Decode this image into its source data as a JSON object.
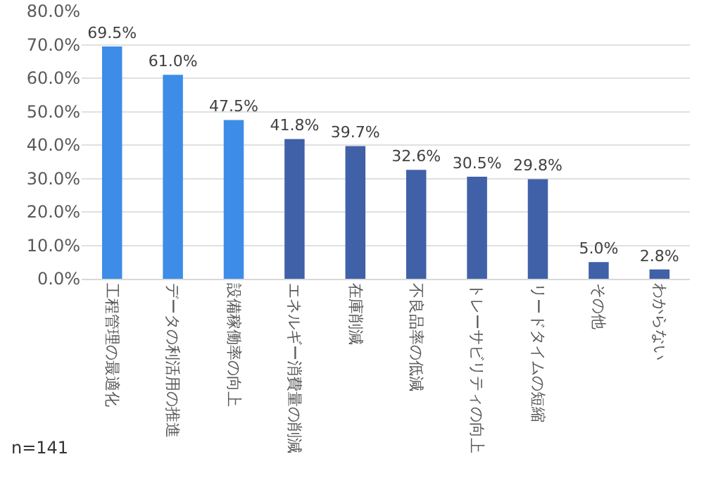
{
  "chart_data": {
    "type": "bar",
    "categories": [
      "工程管理の最適化",
      "データの利活用の推進",
      "設備稼働率の向上",
      "エネルギー消費量の削減",
      "在庫削減",
      "不良品率の低減",
      "トレーサビリティの向上",
      "リードタイムの短縮",
      "その他",
      "わからない"
    ],
    "values": [
      69.5,
      61.0,
      47.5,
      41.8,
      39.7,
      32.6,
      30.5,
      29.8,
      5.0,
      2.8
    ],
    "value_labels": [
      "69.5%",
      "61.0%",
      "47.5%",
      "41.8%",
      "39.7%",
      "32.6%",
      "30.5%",
      "29.8%",
      "5.0%",
      "2.8%"
    ],
    "colors": [
      "#3d8de8",
      "#3d8de8",
      "#3d8de8",
      "#4060a8",
      "#4060a8",
      "#4060a8",
      "#4060a8",
      "#4060a8",
      "#4060a8",
      "#4060a8"
    ],
    "ylim": [
      0,
      80
    ],
    "yticks": [
      {
        "value": 0,
        "label": "0.0%"
      },
      {
        "value": 10,
        "label": "10.0%"
      },
      {
        "value": 20,
        "label": "20.0%"
      },
      {
        "value": 30,
        "label": "30.0%"
      },
      {
        "value": 40,
        "label": "40.0%"
      },
      {
        "value": 50,
        "label": "50.0%"
      },
      {
        "value": 60,
        "label": "60.0%"
      },
      {
        "value": 70,
        "label": "70.0%"
      },
      {
        "value": 80,
        "label": "80.0%"
      }
    ],
    "grid": "y",
    "annotations": [
      "n=141"
    ]
  }
}
